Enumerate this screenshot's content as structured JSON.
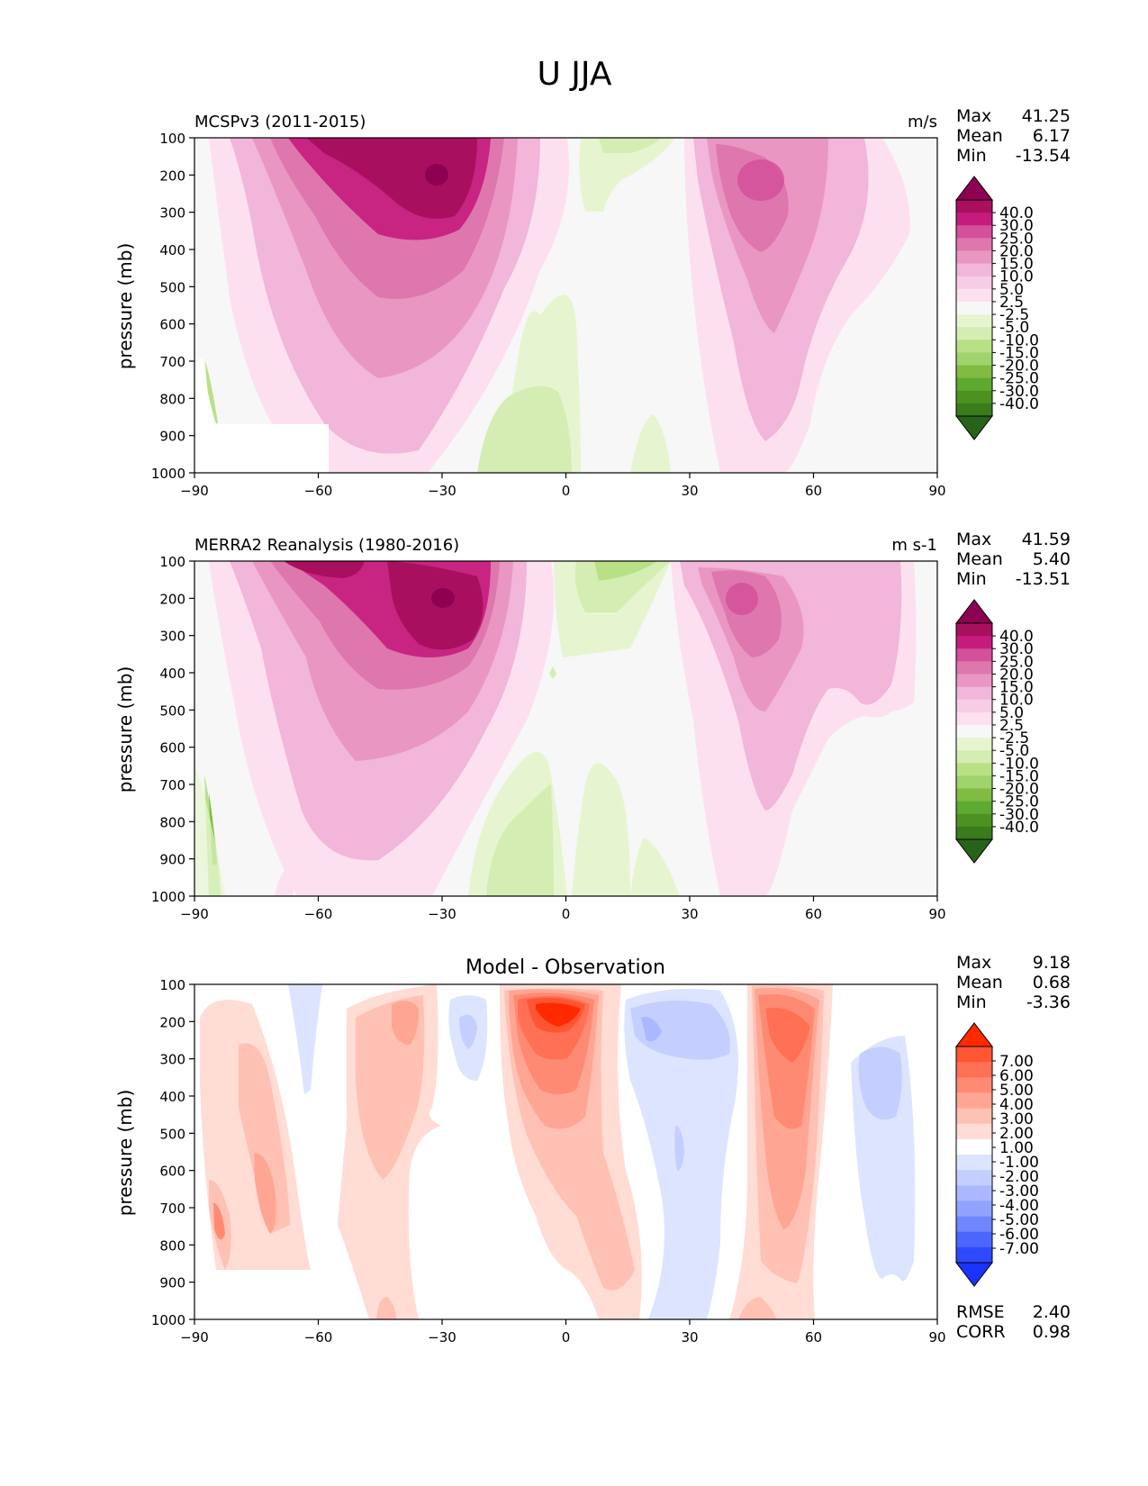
{
  "figure": {
    "title": "U JJA"
  },
  "panels": [
    {
      "id": "model",
      "left_title": "MCSPv3 (2011-2015)",
      "center_title": "",
      "units": "m/s",
      "stats": [
        {
          "label": "Max",
          "value": "41.25"
        },
        {
          "label": "Mean",
          "value": "6.17"
        },
        {
          "label": "Min",
          "value": "-13.54"
        }
      ],
      "extra_stats": []
    },
    {
      "id": "obs",
      "left_title": "MERRA2 Reanalysis (1980-2016)",
      "center_title": "",
      "units": "m s-1",
      "stats": [
        {
          "label": "Max",
          "value": "41.59"
        },
        {
          "label": "Mean",
          "value": "5.40"
        },
        {
          "label": "Min",
          "value": "-13.51"
        }
      ],
      "extra_stats": []
    },
    {
      "id": "diff",
      "left_title": "",
      "center_title": "Model - Observation",
      "units": "",
      "stats": [
        {
          "label": "Max",
          "value": "9.18"
        },
        {
          "label": "Mean",
          "value": "0.68"
        },
        {
          "label": "Min",
          "value": "-3.36"
        }
      ],
      "extra_stats": [
        {
          "label": "RMSE",
          "value": "2.40"
        },
        {
          "label": "CORR",
          "value": "0.98"
        }
      ]
    }
  ],
  "chart_data": [
    {
      "type": "heatmap",
      "title": "MCSPv3 (2011-2015)",
      "units": "m/s",
      "ylabel": "pressure (mb)",
      "xlabel": "",
      "xlim": [
        -90,
        90
      ],
      "ylim": [
        1000,
        100
      ],
      "xticks": [
        "−90",
        "−60",
        "−30",
        "0",
        "30",
        "60",
        "90"
      ],
      "yticks": [
        "100",
        "200",
        "300",
        "400",
        "500",
        "600",
        "700",
        "800",
        "900",
        "1000"
      ],
      "colorbar_levels": [
        "40.0",
        "30.0",
        "25.0",
        "20.0",
        "15.0",
        "10.0",
        "5.0",
        "2.5",
        "-2.5",
        "-5.0",
        "-10.0",
        "-15.0",
        "-20.0",
        "-25.0",
        "-30.0",
        "-40.0"
      ],
      "colorbar_colors": [
        "#8e0152",
        "#a8105f",
        "#c51b7d",
        "#d4509a",
        "#de77ae",
        "#e996c2",
        "#f1b6da",
        "#f6cde5",
        "#fde0ef",
        "#f7f7f7",
        "#e6f5d0",
        "#d4edb3",
        "#b8e186",
        "#9fd36b",
        "#7fbc41",
        "#5ea932",
        "#4d9221",
        "#3a7c1c",
        "#276419"
      ],
      "features": [
        {
          "name": "southern-jet-max",
          "lat": -31,
          "pressure": 200,
          "value": 41.25
        },
        {
          "name": "northern-jet-max",
          "lat": 48,
          "pressure": 220,
          "value": 24
        },
        {
          "name": "tropical-easterlies-upper",
          "lat": 10,
          "pressure": 150,
          "value": -6
        },
        {
          "name": "tropical-easterlies-lower",
          "lat": -10,
          "pressure": 870,
          "value": -6
        }
      ]
    },
    {
      "type": "heatmap",
      "title": "MERRA2 Reanalysis (1980-2016)",
      "units": "m s-1",
      "ylabel": "pressure (mb)",
      "xlabel": "",
      "xlim": [
        -90,
        90
      ],
      "ylim": [
        1000,
        100
      ],
      "xticks": [
        "−90",
        "−60",
        "−30",
        "0",
        "30",
        "60",
        "90"
      ],
      "yticks": [
        "100",
        "200",
        "300",
        "400",
        "500",
        "600",
        "700",
        "800",
        "900",
        "1000"
      ],
      "colorbar_levels": [
        "40.0",
        "30.0",
        "25.0",
        "20.0",
        "15.0",
        "10.0",
        "5.0",
        "2.5",
        "-2.5",
        "-5.0",
        "-10.0",
        "-15.0",
        "-20.0",
        "-25.0",
        "-30.0",
        "-40.0"
      ],
      "colorbar_colors": [
        "#8e0152",
        "#a8105f",
        "#c51b7d",
        "#d4509a",
        "#de77ae",
        "#e996c2",
        "#f1b6da",
        "#f6cde5",
        "#fde0ef",
        "#f7f7f7",
        "#e6f5d0",
        "#d4edb3",
        "#b8e186",
        "#9fd36b",
        "#7fbc41",
        "#5ea932",
        "#4d9221",
        "#3a7c1c",
        "#276419"
      ],
      "features": [
        {
          "name": "southern-jet-max",
          "lat": -29,
          "pressure": 200,
          "value": 41.59
        },
        {
          "name": "northern-jet-max",
          "lat": 44,
          "pressure": 200,
          "value": 22
        },
        {
          "name": "tropical-easterlies-upper",
          "lat": 5,
          "pressure": 200,
          "value": -6
        },
        {
          "name": "tropical-easterlies-lower",
          "lat": -5,
          "pressure": 870,
          "value": -6
        }
      ]
    },
    {
      "type": "heatmap",
      "title": "Model - Observation",
      "units": "",
      "ylabel": "pressure (mb)",
      "xlabel": "",
      "xlim": [
        -90,
        90
      ],
      "ylim": [
        1000,
        100
      ],
      "xticks": [
        "−90",
        "−60",
        "−30",
        "0",
        "30",
        "60",
        "90"
      ],
      "yticks": [
        "100",
        "200",
        "300",
        "400",
        "500",
        "600",
        "700",
        "800",
        "900",
        "1000"
      ],
      "colorbar_levels": [
        "7.00",
        "6.00",
        "5.00",
        "4.00",
        "3.00",
        "2.00",
        "1.00",
        "-1.00",
        "-2.00",
        "-3.00",
        "-4.00",
        "-5.00",
        "-6.00",
        "-7.00"
      ],
      "colorbar_colors": [
        "#ff2a00",
        "#ff5533",
        "#ff7055",
        "#ff8a73",
        "#ffa594",
        "#ffc1b4",
        "#ffdcd4",
        "#ffffff",
        "#dde4ff",
        "#c4cfff",
        "#aab9ff",
        "#90a3ff",
        "#6f86ff",
        "#4b66ff",
        "#2f49ff",
        "#1a33ff"
      ],
      "features": [
        {
          "name": "equatorial-upper-max",
          "lat": -2,
          "pressure": 180,
          "value": 9.18
        },
        {
          "name": "midlat-north-positive",
          "lat": 53,
          "pressure": 250,
          "value": 6
        },
        {
          "name": "southern-positive",
          "lat": -85,
          "pressure": 750,
          "value": 5
        },
        {
          "name": "subtropical-north-negative",
          "lat": 22,
          "pressure": 220,
          "value": -3.36
        },
        {
          "name": "polar-north-negative",
          "lat": 78,
          "pressure": 350,
          "value": -2.5
        }
      ]
    }
  ]
}
